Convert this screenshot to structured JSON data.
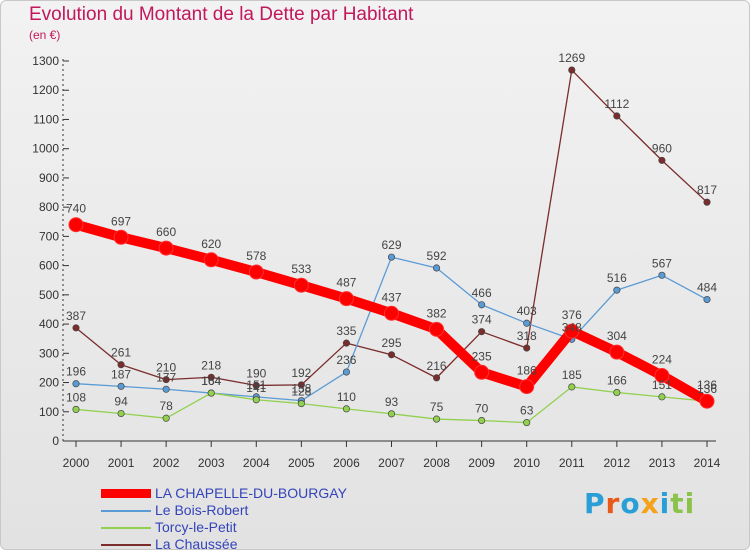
{
  "chart_data": {
    "type": "line",
    "title": "Evolution du Montant de la Dette par Habitant",
    "unit_label": "(en €)",
    "x": [
      "2000",
      "2001",
      "2002",
      "2003",
      "2004",
      "2005",
      "2006",
      "2007",
      "2008",
      "2009",
      "2010",
      "2011",
      "2012",
      "2013",
      "2014"
    ],
    "ylim": [
      0,
      1300
    ],
    "yticks": [
      0,
      100,
      200,
      300,
      400,
      500,
      600,
      700,
      800,
      900,
      1000,
      1100,
      1200,
      1300
    ],
    "grid": false,
    "legend_position": "bottom-left",
    "series": [
      {
        "name": "LA CHAPELLE-DU-BOURGAY",
        "color": "#ff0000",
        "values": [
          740,
          697,
          660,
          620,
          578,
          533,
          487,
          437,
          382,
          235,
          186,
          376,
          304,
          224,
          136
        ],
        "labels": [
          "740",
          "697",
          "660",
          "620",
          "578",
          "533",
          "487",
          "437",
          "382",
          "235",
          "186",
          "376",
          "304",
          "224",
          "136"
        ]
      },
      {
        "name": "Le Bois-Robert",
        "color": "#5b9bd5",
        "values": [
          196,
          187,
          177,
          164,
          151,
          138,
          236,
          629,
          592,
          466,
          403,
          348,
          516,
          567,
          484
        ],
        "labels": [
          "196",
          "187",
          "177",
          "164",
          "151",
          "138",
          "236",
          "629",
          "592",
          "466",
          "403",
          "348",
          "516",
          "567",
          "484"
        ]
      },
      {
        "name": "Torcy-le-Petit",
        "color": "#92d050",
        "values": [
          108,
          94,
          78,
          164,
          141,
          128,
          110,
          93,
          75,
          70,
          63,
          185,
          166,
          151,
          136
        ],
        "labels": [
          "108",
          "94",
          "78",
          "164",
          "141",
          "128",
          "110",
          "93",
          "75",
          "70",
          "63",
          "185",
          "166",
          "151",
          "136"
        ]
      },
      {
        "name": "La Chaussée",
        "color": "#7b2c2c",
        "values": [
          387,
          261,
          210,
          218,
          190,
          192,
          335,
          295,
          216,
          374,
          318,
          1269,
          1112,
          960,
          817
        ],
        "labels": [
          "387",
          "261",
          "210",
          "218",
          "190",
          "192",
          "335",
          "295",
          "216",
          "374",
          "318",
          "1269",
          "1112",
          "960",
          "817"
        ]
      }
    ]
  },
  "logo": {
    "letters": [
      "P",
      "r",
      "o",
      "x",
      "i",
      "ti"
    ]
  }
}
